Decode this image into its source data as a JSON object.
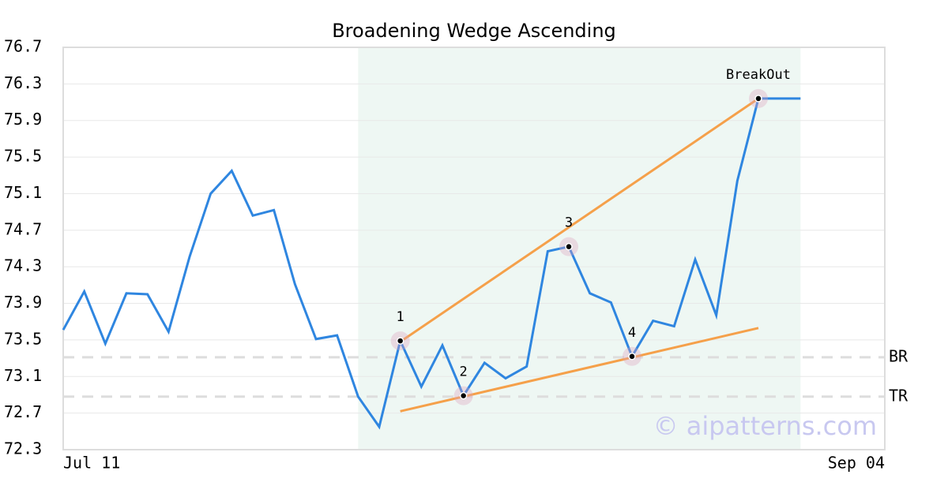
{
  "chart_data": {
    "type": "line",
    "title": "Broadening Wedge Ascending",
    "x": [
      0,
      1,
      2,
      3,
      4,
      5,
      6,
      7,
      8,
      9,
      10,
      11,
      12,
      13,
      14,
      15,
      16,
      17,
      18,
      19,
      20,
      21,
      22,
      23,
      24,
      25,
      26,
      27,
      28,
      29,
      30,
      31,
      32,
      33,
      34,
      35
    ],
    "series": [
      {
        "color": "#2f86e0",
        "values": [
          73.61,
          74.03,
          73.46,
          74.01,
          74.0,
          73.59,
          74.41,
          75.1,
          75.35,
          74.86,
          74.92,
          74.11,
          73.51,
          73.55,
          72.88,
          72.55,
          73.49,
          72.99,
          73.44,
          72.89,
          73.25,
          73.08,
          73.21,
          74.47,
          74.52,
          74.01,
          73.91,
          73.32,
          73.71,
          73.65,
          74.38,
          73.77,
          75.24,
          76.14,
          76.14,
          76.14
        ]
      }
    ],
    "xlim": [
      0,
      39
    ],
    "xticks": [
      {
        "value": 0,
        "label": "Jul 11"
      },
      {
        "value": 39,
        "label": "Sep 04"
      }
    ],
    "ylim": [
      72.3,
      76.7
    ],
    "yticks": [
      72.3,
      72.7,
      73.1,
      73.5,
      73.9,
      74.3,
      74.7,
      75.1,
      75.5,
      75.9,
      76.3,
      76.7
    ],
    "grid": true,
    "shaded_range": [
      14,
      35
    ],
    "shade_color": "#eef7f3",
    "trendlines": [
      {
        "color": "#f5a04a",
        "x": [
          16,
          33
        ],
        "values": [
          73.48,
          76.14
        ]
      },
      {
        "color": "#f5a04a",
        "x": [
          16,
          33
        ],
        "values": [
          72.72,
          73.63
        ]
      }
    ],
    "pivots": [
      {
        "label": "1",
        "x": 16,
        "value": 73.49
      },
      {
        "label": "2",
        "x": 19,
        "value": 72.89
      },
      {
        "label": "3",
        "x": 24,
        "value": 74.52
      },
      {
        "label": "4",
        "x": 27,
        "value": 73.32
      },
      {
        "label": "BreakOut",
        "x": 33,
        "value": 76.14
      }
    ],
    "levels": [
      {
        "label": "BR",
        "value": 73.31
      },
      {
        "label": "TR",
        "value": 72.88
      }
    ],
    "watermark": "© aipatterns.com"
  }
}
